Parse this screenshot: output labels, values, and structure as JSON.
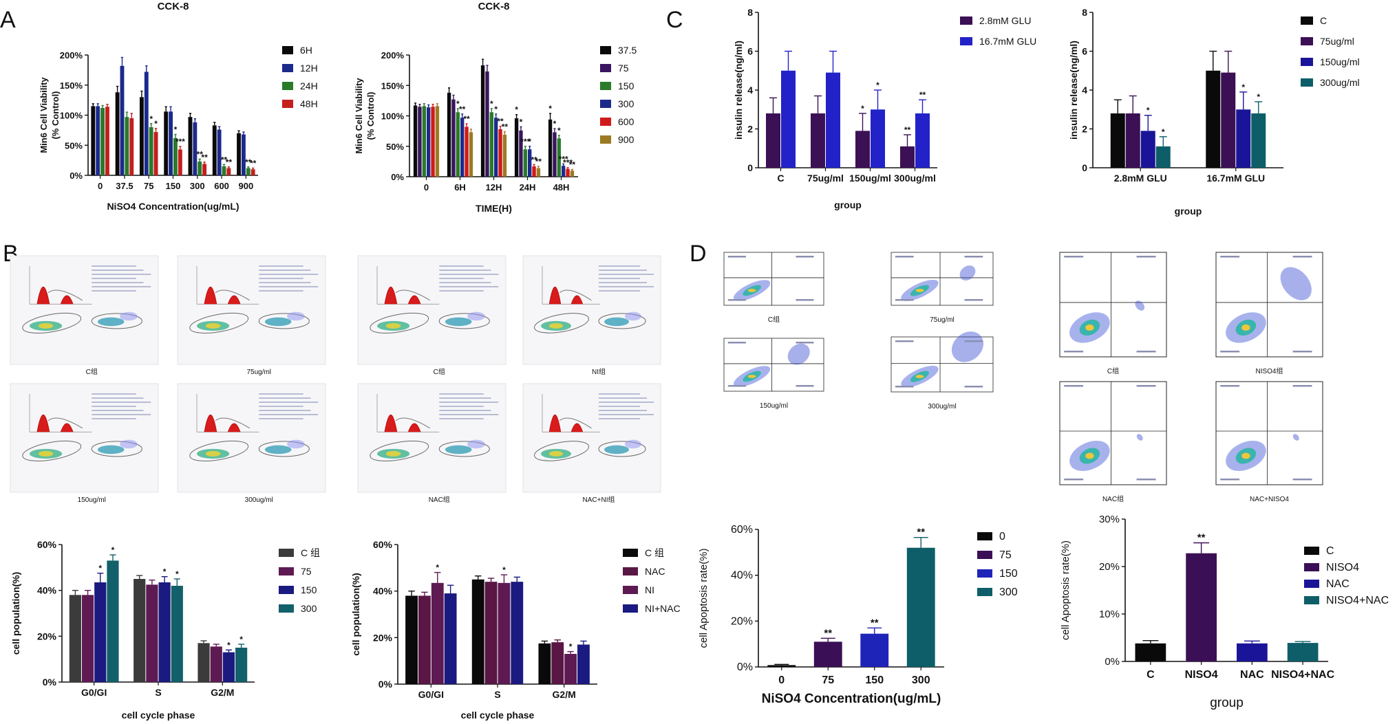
{
  "panel_labels": [
    "A",
    "B",
    "C",
    "D"
  ],
  "colors": {
    "black": "#0a0a0a",
    "blue": "#1c2a8c",
    "green": "#2a7a2a",
    "red": "#c41e1e",
    "purple": "#3a1560",
    "orange": "#9c7a24",
    "crimson": "#d01a1a",
    "gray": "#3b3b3b",
    "magenta": "#5e1a52",
    "navy": "#1a1a80",
    "teal": "#12606a",
    "royal": "#1f24b8",
    "bpurple": "#3b1055",
    "maroon": "#5a1645",
    "dpurple": "#3b0f55",
    "indigo": "#1a1598",
    "dteal": "#0d5e68",
    "lblue": "#2222c8"
  },
  "cytometry": {
    "histogram_labels": [
      "C组",
      "75ug/ml",
      "150ug/ml",
      "300ug/ml",
      "C组",
      "NI组",
      "NAC组",
      "NAC+NI组"
    ],
    "scatter_labels": [
      "C组",
      "75ug/ml",
      "150ug/ml",
      "300ug/ml",
      "C组",
      "NISO4组",
      "NAC组",
      "NAC+NISO4"
    ]
  },
  "chart_data": [
    {
      "id": "A1",
      "type": "bar",
      "title": "CCK-8",
      "ylabel": "Min6 Cell Viability (% Control)",
      "ylabel_lines": [
        "Min6 Cell Viability",
        "(% Control)"
      ],
      "xlabel": "NiSO4 Concentration(ug/mL)",
      "yticks": [
        "0%",
        "50%",
        "100%",
        "150%",
        "200%"
      ],
      "ylim": [
        0,
        200
      ],
      "categories": [
        "0",
        "37.5",
        "75",
        "150",
        "300",
        "600",
        "900"
      ],
      "series": [
        {
          "name": "6H",
          "color": "black",
          "values": [
            115,
            138,
            130,
            106,
            97,
            83,
            70
          ],
          "errors": [
            4,
            10,
            10,
            8,
            6,
            5,
            4
          ],
          "sig": [
            "",
            "",
            "",
            "",
            "",
            "",
            ""
          ]
        },
        {
          "name": "12H",
          "color": "blue",
          "values": [
            115,
            182,
            172,
            106,
            88,
            76,
            68
          ],
          "errors": [
            4,
            14,
            10,
            8,
            6,
            5,
            4
          ],
          "sig": [
            "",
            "",
            "",
            "",
            "",
            "",
            ""
          ]
        },
        {
          "name": "24H",
          "color": "green",
          "values": [
            112,
            97,
            80,
            62,
            23,
            15,
            12
          ],
          "errors": [
            4,
            8,
            6,
            6,
            4,
            3,
            2
          ],
          "sig": [
            "",
            "",
            "*",
            "*",
            "**",
            "**",
            "**"
          ]
        },
        {
          "name": "48H",
          "color": "red",
          "values": [
            114,
            95,
            72,
            43,
            19,
            12,
            10
          ],
          "errors": [
            4,
            8,
            6,
            5,
            3,
            2,
            2
          ],
          "sig": [
            "",
            "",
            "*",
            "***",
            "**",
            "**",
            "**"
          ]
        }
      ]
    },
    {
      "id": "A2",
      "type": "bar",
      "title": "CCK-8",
      "ylabel": "Min6 Cell Viability (% Control)",
      "ylabel_lines": [
        "Min6 Cell Viability",
        "(% Control)"
      ],
      "xlabel": "TIME(H)",
      "yticks": [
        "0%",
        "50%",
        "100%",
        "150%",
        "200%"
      ],
      "ylim": [
        0,
        200
      ],
      "categories": [
        "0",
        "6H",
        "12H",
        "24H",
        "48H"
      ],
      "series": [
        {
          "name": "37.5",
          "color": "black",
          "values": [
            117,
            138,
            183,
            96,
            94
          ],
          "errors": [
            4,
            8,
            10,
            6,
            10
          ],
          "sig": [
            "",
            "",
            "",
            "*",
            "*"
          ]
        },
        {
          "name": "75",
          "color": "purple",
          "values": [
            115,
            127,
            173,
            76,
            73
          ],
          "errors": [
            4,
            7,
            10,
            6,
            6
          ],
          "sig": [
            "",
            "",
            "",
            "*",
            "*"
          ]
        },
        {
          "name": "150",
          "color": "green",
          "values": [
            116,
            106,
            106,
            45,
            63
          ],
          "errors": [
            4,
            6,
            6,
            5,
            5
          ],
          "sig": [
            "",
            "*",
            "*",
            "***",
            "*"
          ]
        },
        {
          "name": "300",
          "color": "blue",
          "values": [
            114,
            97,
            97,
            45,
            18
          ],
          "errors": [
            4,
            6,
            6,
            5,
            3
          ],
          "sig": [
            "",
            "**",
            "*",
            "*",
            "***"
          ]
        },
        {
          "name": "600",
          "color": "crimson",
          "values": [
            115,
            82,
            78,
            17,
            13
          ],
          "errors": [
            4,
            5,
            5,
            3,
            2
          ],
          "sig": [
            "",
            "**",
            "**",
            "**",
            "***"
          ]
        },
        {
          "name": "900",
          "color": "orange",
          "values": [
            116,
            73,
            69,
            14,
            10
          ],
          "errors": [
            4,
            5,
            5,
            3,
            2
          ],
          "sig": [
            "",
            "",
            "**",
            "**",
            "**"
          ]
        }
      ]
    },
    {
      "id": "C1",
      "type": "bar",
      "title": "",
      "ylabel": "insulin release(ng/ml)",
      "ylabel_lines": [
        "insulin release(ng/ml)"
      ],
      "xlabel": "group",
      "yticks": [
        "0",
        "2",
        "4",
        "6",
        "8"
      ],
      "ylim": [
        0,
        8
      ],
      "categories": [
        "C",
        "75ug/ml",
        "150ug/ml",
        "300ug/ml"
      ],
      "series": [
        {
          "name": "2.8mM GLU",
          "color": "bpurple",
          "values": [
            2.8,
            2.8,
            1.9,
            1.1
          ],
          "errors": [
            0.8,
            0.9,
            0.9,
            0.6
          ],
          "sig": [
            "",
            "",
            "*",
            "**"
          ]
        },
        {
          "name": "16.7mM GLU",
          "color": "lblue",
          "values": [
            5.0,
            4.9,
            3.0,
            2.8
          ],
          "errors": [
            1.0,
            1.1,
            1.0,
            0.7
          ],
          "sig": [
            "",
            "",
            "*",
            "**"
          ]
        }
      ]
    },
    {
      "id": "C2",
      "type": "bar",
      "title": "",
      "ylabel": "insulin release(ng/ml)",
      "ylabel_lines": [
        "insulin release(ng/ml)"
      ],
      "xlabel": "group",
      "yticks": [
        "0",
        "2",
        "4",
        "6",
        "8"
      ],
      "ylim": [
        0,
        8
      ],
      "categories": [
        "2.8mM GLU",
        "16.7mM GLU"
      ],
      "series": [
        {
          "name": "C",
          "color": "black",
          "values": [
            2.8,
            5.0
          ],
          "errors": [
            0.7,
            1.0
          ],
          "sig": [
            "",
            ""
          ]
        },
        {
          "name": "75ug/ml",
          "color": "bpurple",
          "values": [
            2.8,
            4.9
          ],
          "errors": [
            0.9,
            1.1
          ],
          "sig": [
            "",
            ""
          ]
        },
        {
          "name": "150ug/ml",
          "color": "indigo",
          "values": [
            1.9,
            3.0
          ],
          "errors": [
            0.8,
            0.9
          ],
          "sig": [
            "*",
            "*"
          ]
        },
        {
          "name": "300ug/ml",
          "color": "dteal",
          "values": [
            1.1,
            2.8
          ],
          "errors": [
            0.5,
            0.6
          ],
          "sig": [
            "*",
            "*"
          ]
        }
      ]
    },
    {
      "id": "B1",
      "type": "bar",
      "title": "",
      "ylabel": "cell population(%)",
      "ylabel_lines": [
        "cell population(%)"
      ],
      "xlabel": "cell cycle phase",
      "yticks": [
        "0%",
        "20%",
        "40%",
        "60%"
      ],
      "ylim": [
        0,
        60
      ],
      "categories": [
        "G0/GI",
        "S",
        "G2/M"
      ],
      "series": [
        {
          "name": "C 组",
          "color": "gray",
          "values": [
            38,
            45,
            17
          ],
          "errors": [
            2,
            1.5,
            1
          ],
          "sig": [
            "",
            "",
            ""
          ]
        },
        {
          "name": "75",
          "color": "magenta",
          "values": [
            38,
            42.5,
            15.5
          ],
          "errors": [
            2,
            2,
            1
          ],
          "sig": [
            "",
            "",
            ""
          ]
        },
        {
          "name": "150",
          "color": "navy",
          "values": [
            43.5,
            43.5,
            13
          ],
          "errors": [
            4,
            2.5,
            1
          ],
          "sig": [
            "*",
            "*",
            "*"
          ]
        },
        {
          "name": "300",
          "color": "teal",
          "values": [
            53,
            42,
            15
          ],
          "errors": [
            2.5,
            3,
            1.5
          ],
          "sig": [
            "*",
            "*",
            "*"
          ]
        }
      ]
    },
    {
      "id": "B2",
      "type": "bar",
      "title": "",
      "ylabel": "cell population(%)",
      "ylabel_lines": [
        "cell population(%)"
      ],
      "xlabel": "cell cycle phase",
      "yticks": [
        "0%",
        "20%",
        "40%",
        "60%"
      ],
      "ylim": [
        0,
        60
      ],
      "categories": [
        "G0/GI",
        "S",
        "G2/M"
      ],
      "series": [
        {
          "name": "C 组",
          "color": "black",
          "values": [
            38,
            45,
            17.5
          ],
          "errors": [
            2,
            1.5,
            1
          ],
          "sig": [
            "",
            "",
            ""
          ]
        },
        {
          "name": "NAC",
          "color": "maroon",
          "values": [
            38,
            44,
            18
          ],
          "errors": [
            1.5,
            1.5,
            1
          ],
          "sig": [
            "",
            "",
            ""
          ]
        },
        {
          "name": "NI",
          "color": "magenta",
          "values": [
            43.5,
            43.5,
            13
          ],
          "errors": [
            4.5,
            3.5,
            1
          ],
          "sig": [
            "*",
            "*",
            "*"
          ]
        },
        {
          "name": "NI+NAC",
          "color": "navy",
          "values": [
            39,
            44,
            17
          ],
          "errors": [
            3.5,
            2,
            1.5
          ],
          "sig": [
            "",
            "",
            ""
          ]
        }
      ]
    },
    {
      "id": "D1",
      "type": "bar",
      "title": "",
      "ylabel": "cell Apoptosis rate(%)",
      "ylabel_lines": [
        "cell Apoptosis rate(%)"
      ],
      "xlabel": "NiSO4 Concentration(ug/mL)",
      "yticks": [
        "0%",
        "20%",
        "40%",
        "60%"
      ],
      "ylim": [
        0,
        60
      ],
      "categories": [
        "0",
        "75",
        "150",
        "300"
      ],
      "series": [
        {
          "name": "Apoptosis rate",
          "color": "black",
          "colors": [
            "black",
            "dpurple",
            "royal",
            "dteal"
          ],
          "values": [
            0.8,
            11,
            14.5,
            52
          ],
          "errors": [
            0.3,
            1.5,
            2.5,
            4.5
          ],
          "sig": [
            "",
            "**",
            "**",
            "**"
          ]
        }
      ],
      "legend": [
        {
          "name": "0",
          "color": "black"
        },
        {
          "name": "75",
          "color": "dpurple"
        },
        {
          "name": "150",
          "color": "royal"
        },
        {
          "name": "300",
          "color": "dteal"
        }
      ]
    },
    {
      "id": "D2",
      "type": "bar",
      "title": "",
      "ylabel": "cell Apoptosis rate(%)",
      "ylabel_lines": [
        "cell Apoptosis rate(%)"
      ],
      "xlabel": "group",
      "yticks": [
        "0%",
        "10%",
        "20%",
        "30%"
      ],
      "ylim": [
        0,
        30
      ],
      "categories": [
        "C",
        "NISO4",
        "NAC",
        "NISO4+NAC"
      ],
      "series": [
        {
          "name": "Apoptosis rate",
          "color": "black",
          "colors": [
            "black",
            "dpurple",
            "indigo",
            "dteal"
          ],
          "values": [
            3.8,
            22.8,
            3.8,
            3.9
          ],
          "errors": [
            0.6,
            2.2,
            0.5,
            0.3
          ],
          "sig": [
            "",
            "**",
            "",
            ""
          ]
        }
      ],
      "legend": [
        {
          "name": "C",
          "color": "black"
        },
        {
          "name": "NISO4",
          "color": "dpurple"
        },
        {
          "name": "NAC",
          "color": "indigo"
        },
        {
          "name": "NISO4+NAC",
          "color": "dteal"
        }
      ]
    }
  ]
}
